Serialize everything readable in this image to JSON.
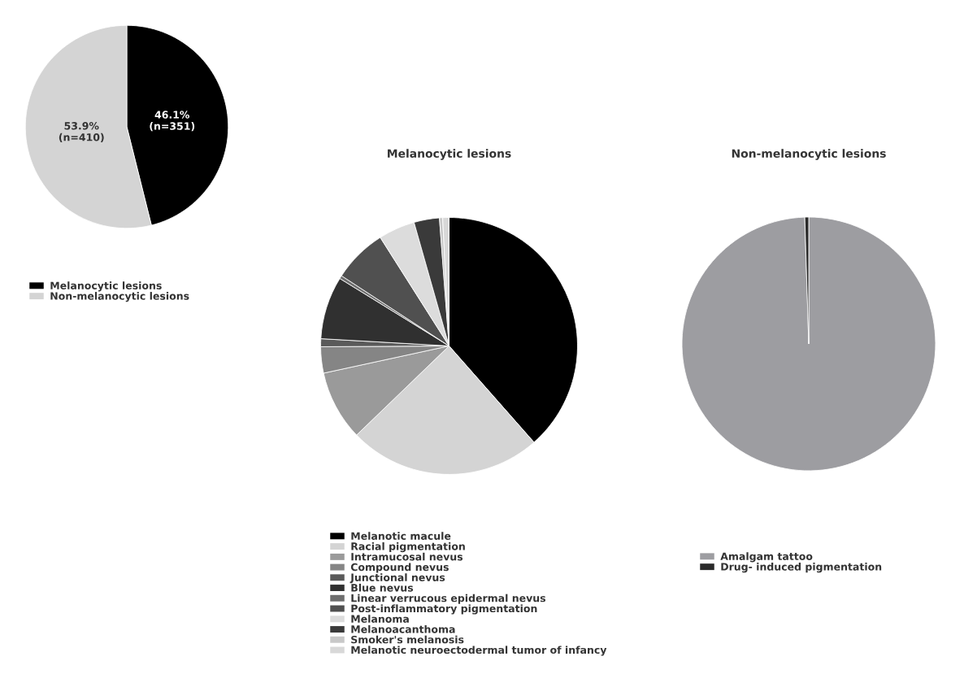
{
  "chart_data": [
    {
      "type": "pie",
      "categories": [
        "Melanocytic lesions",
        "Non-melanocytic lesions"
      ],
      "values": [
        46.1,
        53.9
      ],
      "colors": [
        "#000000",
        "#d4d4d4"
      ],
      "value_labels": [
        "46.1%\n(n=351)",
        "53.9%\n(n=410)"
      ],
      "legend": "bottom"
    },
    {
      "type": "pie",
      "title": "Melanocytic lesions",
      "categories": [
        "Melanotic macule",
        "Racial pigmentation",
        "Intramucosal nevus",
        "Compound nevus",
        "Junctional nevus",
        "Blue nevus",
        "Linear verrucous epidermal nevus",
        "Post-inflammatory pigmentation",
        "Melanoma",
        "Melanoacanthoma",
        "Smoker's melanosis",
        "Melanotic neuroectodermal tumor of infancy"
      ],
      "values": [
        38.5,
        24.3,
        8.8,
        3.3,
        1.0,
        7.9,
        0.4,
        6.8,
        4.6,
        3.2,
        0.4,
        0.8
      ],
      "colors": [
        "#000000",
        "#d4d4d4",
        "#9a9a9a",
        "#858585",
        "#5a5a5a",
        "#303030",
        "#6e6e6e",
        "#505050",
        "#dcdcdc",
        "#3a3a3a",
        "#c8c8c8",
        "#d8d8d8"
      ],
      "legend": "bottom"
    },
    {
      "type": "pie",
      "title": "Non-melanocytic lesions",
      "categories": [
        "Amalgam tattoo",
        "Drug- induced pigmentation"
      ],
      "values": [
        99.5,
        0.5
      ],
      "colors": [
        "#9d9da1",
        "#2a2a2a"
      ],
      "legend": "bottom"
    }
  ]
}
